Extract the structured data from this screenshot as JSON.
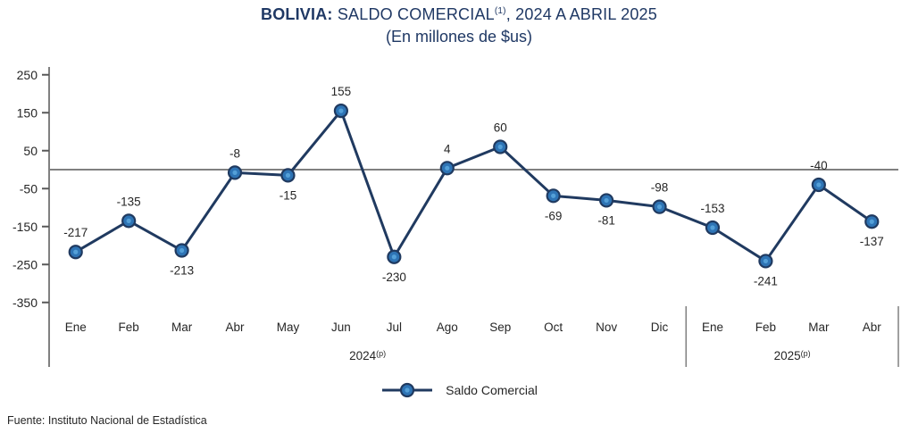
{
  "title": {
    "prefix": "BOLIVIA:",
    "main": " SALDO COMERCIAL",
    "superscript": "(1)",
    "suffix": ", 2024 A ABRIL 2025",
    "subtitle": "(En millones de $us)"
  },
  "colors": {
    "title_navy": "#1f3864",
    "series_line": "#203a60",
    "marker_fill": "#2e74b5",
    "marker_inner": "#54a0d8",
    "axis_gray": "#808080",
    "tick_gray": "#595959",
    "text_dark": "#262626"
  },
  "chart_data": {
    "type": "line",
    "title": "BOLIVIA: SALDO COMERCIAL(1), 2024 A ABRIL 2025",
    "subtitle": "(En millones de $us)",
    "categories": [
      "Ene",
      "Feb",
      "Mar",
      "Abr",
      "May",
      "Jun",
      "Jul",
      "Ago",
      "Sep",
      "Oct",
      "Nov",
      "Dic",
      "Ene",
      "Feb",
      "Mar",
      "Abr"
    ],
    "values": [
      -217,
      -135,
      -213,
      -8,
      -15,
      155,
      -230,
      4,
      60,
      -69,
      -81,
      -98,
      -153,
      -241,
      -40,
      -137
    ],
    "label_side": [
      "above",
      "above",
      "below",
      "above",
      "below",
      "above",
      "below",
      "above",
      "above",
      "below",
      "below",
      "above",
      "above",
      "below",
      "above",
      "below"
    ],
    "year_groups": [
      {
        "label": "2024",
        "sup": "(p)",
        "span": 12
      },
      {
        "label": "2025",
        "sup": "(p)",
        "span": 4
      }
    ],
    "y_ticks": [
      250,
      150,
      50,
      -50,
      -150,
      -250,
      -350
    ],
    "ylim": [
      -350,
      250
    ],
    "grid": "zero-line-only",
    "legend_position": "bottom",
    "series_name": "Saldo Comercial"
  },
  "legend": {
    "label": "Saldo Comercial"
  },
  "footer": {
    "source": "Fuente: Instituto Nacional de Estadística"
  }
}
